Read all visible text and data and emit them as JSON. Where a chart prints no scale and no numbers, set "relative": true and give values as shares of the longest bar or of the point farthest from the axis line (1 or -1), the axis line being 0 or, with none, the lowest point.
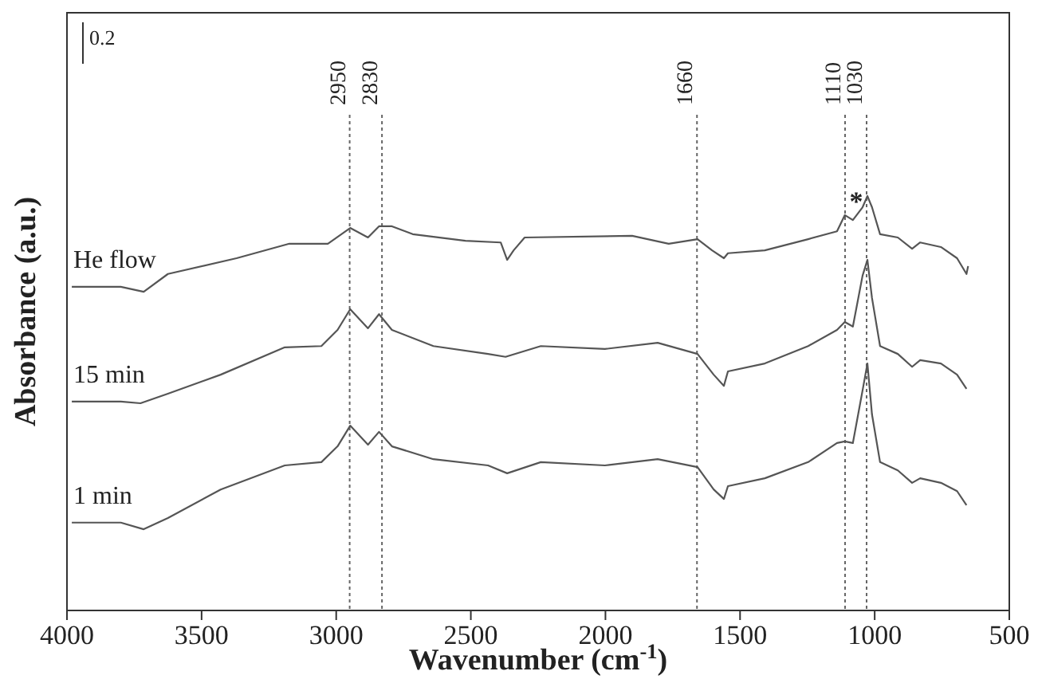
{
  "chart_data": {
    "type": "line",
    "relative": true,
    "xlabel": "Wavenumber (cm$^{-1}$)",
    "ylabel": "Absorbance (a.u.)",
    "xlim": [
      4000,
      500
    ],
    "xticks": [
      4000,
      3500,
      3000,
      2500,
      2000,
      1500,
      1000,
      500
    ],
    "legend": false,
    "grid": false,
    "annotations": [
      "0.2",
      "*"
    ],
    "ref_lines": [
      {
        "axis": "x",
        "value": 2950,
        "label": "2950",
        "line_style": "dotted"
      },
      {
        "axis": "x",
        "value": 2830,
        "label": "2830",
        "line_style": "dotted"
      },
      {
        "axis": "x",
        "value": 1660,
        "label": "1660",
        "line_style": "dotted"
      },
      {
        "axis": "x",
        "value": 1110,
        "label": "1110",
        "line_style": "dotted"
      },
      {
        "axis": "x",
        "value": 1030,
        "label": "1030",
        "line_style": "dotted"
      }
    ],
    "series": [
      {
        "name": "He flow",
        "color": "#555555",
        "x": [
          3982,
          3800,
          3715,
          3625,
          3370,
          3174,
          3031,
          2948,
          2882,
          2841,
          2793,
          2716,
          2520,
          2389,
          2365,
          2341,
          2300,
          1901,
          1765,
          1658,
          1604,
          1560,
          1545,
          1408,
          1247,
          1140,
          1111,
          1081,
          1045,
          1027,
          1010,
          980,
          914,
          861,
          831,
          754,
          694,
          659,
          653
        ],
        "values": [
          0.781,
          0.781,
          0.769,
          0.812,
          0.85,
          0.885,
          0.885,
          0.923,
          0.9,
          0.927,
          0.927,
          0.908,
          0.892,
          0.888,
          0.846,
          0.869,
          0.9,
          0.904,
          0.885,
          0.896,
          0.869,
          0.85,
          0.862,
          0.869,
          0.896,
          0.915,
          0.954,
          0.942,
          0.973,
          1.0,
          0.973,
          0.908,
          0.9,
          0.873,
          0.888,
          0.877,
          0.85,
          0.812,
          0.831
        ]
      },
      {
        "name": "15 min",
        "color": "#555555",
        "x": [
          3982,
          3800,
          3727,
          3625,
          3429,
          3191,
          3055,
          2995,
          2948,
          2882,
          2841,
          2793,
          2639,
          2436,
          2371,
          2240,
          2002,
          1806,
          1658,
          1598,
          1560,
          1545,
          1408,
          1247,
          1140,
          1111,
          1081,
          1045,
          1027,
          1010,
          980,
          914,
          861,
          831,
          754,
          694,
          659
        ],
        "values": [
          0.504,
          0.504,
          0.5,
          0.523,
          0.569,
          0.635,
          0.638,
          0.677,
          0.727,
          0.681,
          0.715,
          0.677,
          0.638,
          0.619,
          0.612,
          0.638,
          0.631,
          0.646,
          0.619,
          0.569,
          0.542,
          0.577,
          0.596,
          0.638,
          0.677,
          0.696,
          0.685,
          0.808,
          0.846,
          0.754,
          0.638,
          0.619,
          0.588,
          0.604,
          0.596,
          0.569,
          0.535
        ]
      },
      {
        "name": "1 min",
        "color": "#555555",
        "x": [
          3982,
          3800,
          3715,
          3625,
          3429,
          3191,
          3055,
          2995,
          2948,
          2882,
          2841,
          2793,
          2639,
          2436,
          2365,
          2240,
          2002,
          1806,
          1658,
          1598,
          1560,
          1545,
          1408,
          1247,
          1140,
          1111,
          1081,
          1045,
          1027,
          1010,
          980,
          914,
          861,
          831,
          754,
          694,
          659
        ],
        "values": [
          0.212,
          0.212,
          0.196,
          0.223,
          0.292,
          0.35,
          0.358,
          0.396,
          0.446,
          0.4,
          0.431,
          0.396,
          0.365,
          0.35,
          0.331,
          0.358,
          0.35,
          0.365,
          0.346,
          0.292,
          0.269,
          0.3,
          0.319,
          0.358,
          0.404,
          0.408,
          0.404,
          0.531,
          0.596,
          0.473,
          0.358,
          0.338,
          0.308,
          0.319,
          0.308,
          0.288,
          0.254
        ]
      }
    ]
  }
}
